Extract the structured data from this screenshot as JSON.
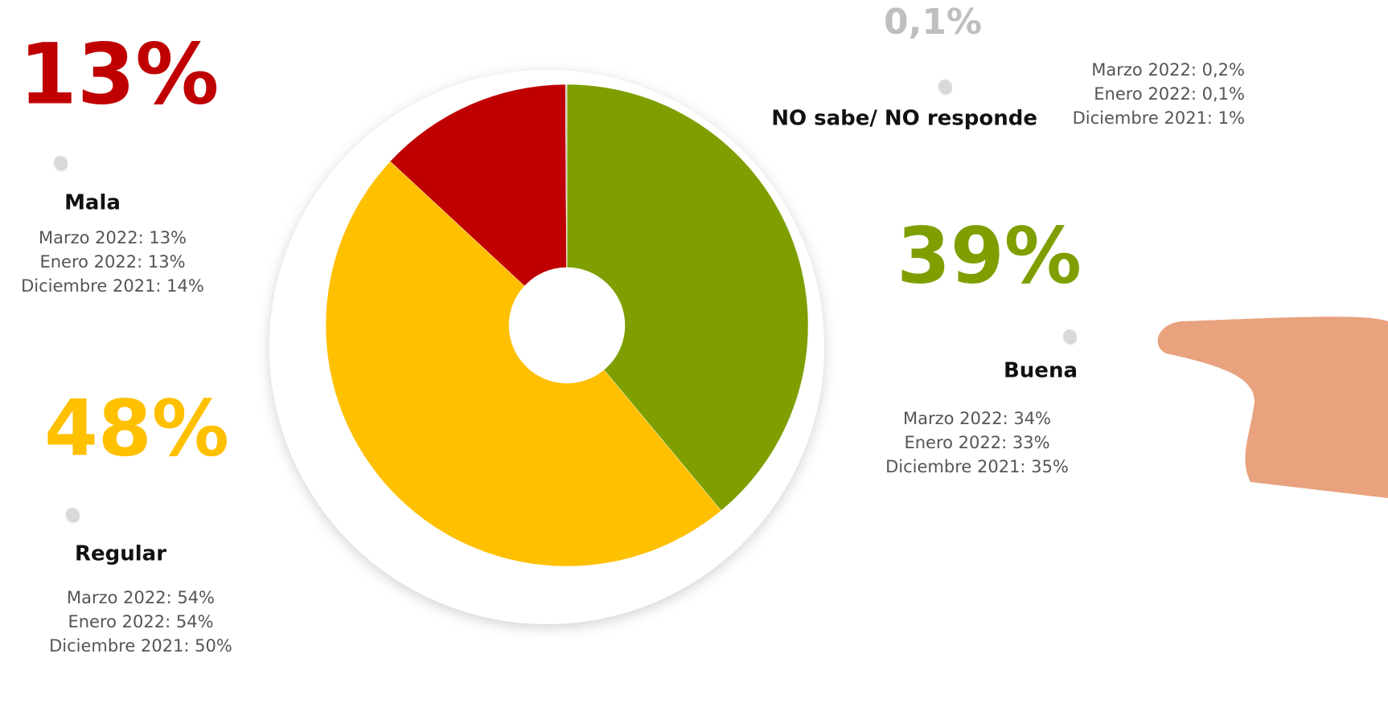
{
  "chart_data": {
    "type": "pie",
    "donut": true,
    "categories": [
      "Buena",
      "Regular",
      "Mala",
      "NO sabe/ NO responde"
    ],
    "values": [
      39,
      48,
      13,
      0.1
    ],
    "value_labels": [
      "39%",
      "48%",
      "13%",
      "0,1%"
    ],
    "colors": [
      "#7f9f00",
      "#ffc000",
      "#c00000",
      "#bfbfbf"
    ],
    "history": [
      [
        "Marzo 2022: 34%",
        "Enero 2022: 33%",
        "Diciembre 2021: 35%"
      ],
      [
        "Marzo 2022: 54%",
        "Enero 2022: 54%",
        "Diciembre 2021: 50%"
      ],
      [
        "Marzo 2022: 13%",
        "Enero 2022: 13%",
        "Diciembre 2021: 14%"
      ],
      [
        "Marzo 2022: 0,2%",
        "Enero 2022: 0,1%",
        "Diciembre 2021: 1%"
      ]
    ]
  }
}
